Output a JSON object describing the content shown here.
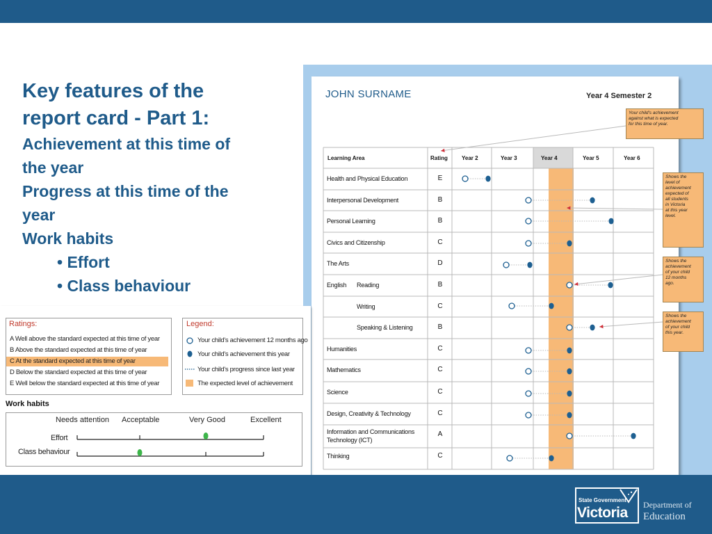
{
  "slide": {
    "title_line1": "Key features of the",
    "title_line2": "report card - Part 1:",
    "lines": [
      "Achievement at this time of",
      "the year",
      "Progress at this time of the",
      "year",
      "Work habits"
    ],
    "bullets": [
      "• Effort",
      "• Class behaviour"
    ]
  },
  "report": {
    "student_name": "JOHN SURNAME",
    "semester": "Year 4 Semester 2",
    "headers": {
      "area": "Learning Area",
      "rating": "Rating",
      "years": [
        "Year 2",
        "Year 3",
        "Year 4",
        "Year 5",
        "Year 6"
      ]
    },
    "rows": [
      {
        "area": "Health and Physical Education",
        "rating": "E"
      },
      {
        "area": "Interpersonal Development",
        "rating": "B"
      },
      {
        "area": "Personal Learning",
        "rating": "B"
      },
      {
        "area": "Civics and Citizenship",
        "rating": "C"
      },
      {
        "area": "The Arts",
        "rating": "D"
      },
      {
        "area": "English",
        "sub": "Reading",
        "rating": "B"
      },
      {
        "sub": "Writing",
        "rating": "C"
      },
      {
        "sub": "Speaking & Listening",
        "rating": "B"
      },
      {
        "area": "Humanities",
        "rating": "C"
      },
      {
        "area": "Mathematics",
        "rating": "C"
      },
      {
        "area": "Science",
        "rating": "C"
      },
      {
        "area": "Design, Creativity & Technology",
        "rating": "C"
      },
      {
        "area": "Information and Communications",
        "area2": "Technology (ICT)",
        "rating": "A"
      },
      {
        "area": "Thinking",
        "rating": "C"
      }
    ],
    "callouts": [
      [
        "Your child's achievement",
        "against what is expected",
        "for this time of year."
      ],
      [
        "Shows the",
        "level of",
        "achievement",
        "expected of",
        "all students",
        "in Victoria",
        "at this year",
        "level."
      ],
      [
        "Shows the",
        "achievement",
        "of your child",
        "12 months",
        "ago."
      ],
      [
        "Shows the",
        "achievement",
        "of your child",
        "this year."
      ]
    ]
  },
  "ratings": {
    "title": "Ratings:",
    "items": [
      "A   Well above the standard expected at this time of year",
      "B   Above the standard expected at this time of year",
      "C   At the standard expected at this time of year",
      "D   Below the standard expected at this time of year",
      "E   Well below the standard expected at this time of year"
    ]
  },
  "legend": {
    "title": "Legend:",
    "items": [
      "Your child's achievement 12 months ago",
      "Your child's achievement this year",
      "Your child's progress since last year",
      "The expected level of achievement"
    ]
  },
  "work_habits": {
    "title": "Work habits",
    "columns": [
      "Needs attention",
      "Acceptable",
      "Very Good",
      "Excellent"
    ],
    "rows": [
      {
        "label": "Effort",
        "level": "Very Good"
      },
      {
        "label": "Class behaviour",
        "level": "Acceptable"
      }
    ]
  },
  "logo": {
    "small": "State Government",
    "big": "Victoria",
    "dept1": "Department of",
    "dept2": "Education"
  },
  "colors": {
    "brand_blue": "#1f5b8a",
    "panel_blue": "#a8cdec",
    "expected_orange": "#f7b977",
    "dot_blue": "#1d5f91",
    "dot_green": "#3db54a",
    "arrow_red": "#d0303a"
  }
}
